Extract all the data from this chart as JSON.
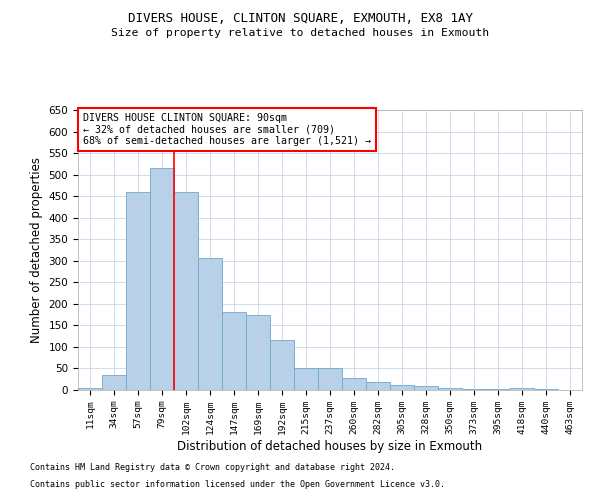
{
  "title1": "DIVERS HOUSE, CLINTON SQUARE, EXMOUTH, EX8 1AY",
  "title2": "Size of property relative to detached houses in Exmouth",
  "xlabel": "Distribution of detached houses by size in Exmouth",
  "ylabel": "Number of detached properties",
  "categories": [
    "11sqm",
    "34sqm",
    "57sqm",
    "79sqm",
    "102sqm",
    "124sqm",
    "147sqm",
    "169sqm",
    "192sqm",
    "215sqm",
    "237sqm",
    "260sqm",
    "282sqm",
    "305sqm",
    "328sqm",
    "350sqm",
    "373sqm",
    "395sqm",
    "418sqm",
    "440sqm",
    "463sqm"
  ],
  "values": [
    5,
    35,
    460,
    515,
    460,
    307,
    180,
    175,
    115,
    50,
    50,
    27,
    18,
    12,
    9,
    5,
    3,
    2,
    4,
    2,
    1
  ],
  "bar_color": "#b8d0e8",
  "bar_edge_color": "#6fa8d0",
  "red_line_index": 3,
  "annotation_title": "DIVERS HOUSE CLINTON SQUARE: 90sqm",
  "annotation_line1": "← 32% of detached houses are smaller (709)",
  "annotation_line2": "68% of semi-detached houses are larger (1,521) →",
  "ylim": [
    0,
    650
  ],
  "yticks": [
    0,
    50,
    100,
    150,
    200,
    250,
    300,
    350,
    400,
    450,
    500,
    550,
    600,
    650
  ],
  "footer1": "Contains HM Land Registry data © Crown copyright and database right 2024.",
  "footer2": "Contains public sector information licensed under the Open Government Licence v3.0.",
  "background_color": "#ffffff",
  "grid_color": "#c8d8e8"
}
